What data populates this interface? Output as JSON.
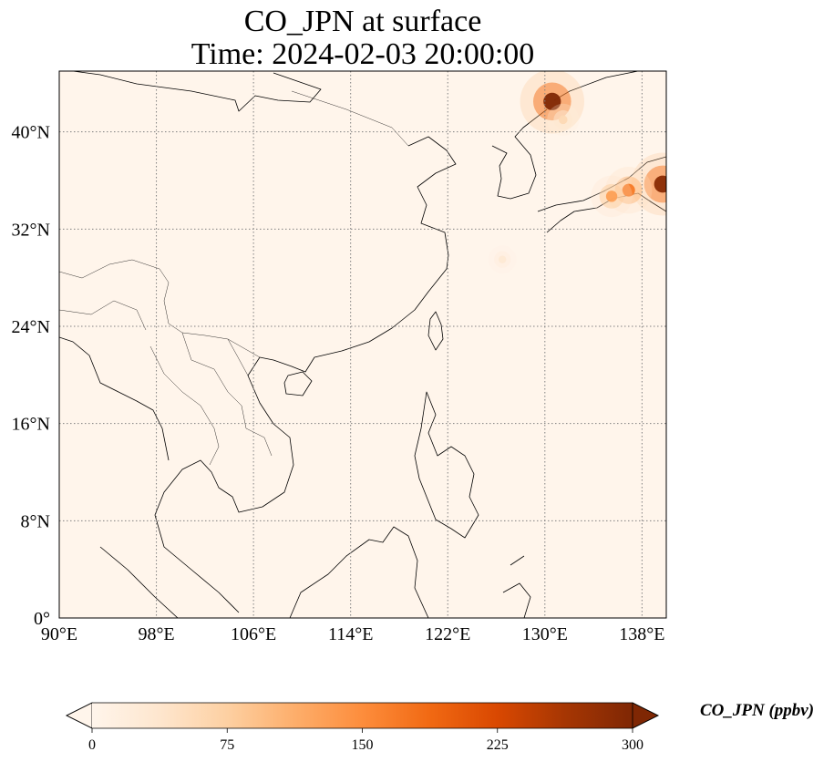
{
  "title": {
    "line1": "CO_JPN at surface",
    "line2": "Time: 2024-02-03 20:00:00"
  },
  "map": {
    "lon_range": [
      90,
      140
    ],
    "lat_range": [
      0,
      45
    ],
    "lon_ticks": [
      {
        "value": 90,
        "label": "90°E"
      },
      {
        "value": 98,
        "label": "98°E"
      },
      {
        "value": 106,
        "label": "106°E"
      },
      {
        "value": 114,
        "label": "114°E"
      },
      {
        "value": 122,
        "label": "122°E"
      },
      {
        "value": 130,
        "label": "130°E"
      },
      {
        "value": 138,
        "label": "138°E"
      }
    ],
    "lat_ticks": [
      {
        "value": 0,
        "label": "0°"
      },
      {
        "value": 8,
        "label": "8°N"
      },
      {
        "value": 16,
        "label": "16°N"
      },
      {
        "value": 24,
        "label": "24°N"
      },
      {
        "value": 32,
        "label": "32°N"
      },
      {
        "value": 40,
        "label": "40°N"
      }
    ],
    "gridlines": true,
    "background_color": "#fff5eb",
    "hotspots": [
      {
        "lon": 130.6,
        "lat": 42.5,
        "value": 300
      },
      {
        "lon": 139.7,
        "lat": 35.7,
        "value": 290
      },
      {
        "lon": 136.9,
        "lat": 35.2,
        "value": 170
      },
      {
        "lon": 135.5,
        "lat": 34.7,
        "value": 130
      },
      {
        "lon": 131.5,
        "lat": 41.0,
        "value": 60
      },
      {
        "lon": 126.5,
        "lat": 29.5,
        "value": 30
      }
    ]
  },
  "colorbar": {
    "label": "CO_JPN (ppbv)",
    "min": 0,
    "max": 300,
    "ticks": [
      {
        "value": 0,
        "label": "0"
      },
      {
        "value": 75,
        "label": "75"
      },
      {
        "value": 150,
        "label": "150"
      },
      {
        "value": 225,
        "label": "225"
      },
      {
        "value": 300,
        "label": "300"
      }
    ],
    "extend": "both",
    "colormap": [
      "#fff5eb",
      "#fee6ce",
      "#fdd0a2",
      "#fdae6b",
      "#fd8d3c",
      "#f16913",
      "#d94801",
      "#a63603",
      "#7f2704"
    ]
  }
}
